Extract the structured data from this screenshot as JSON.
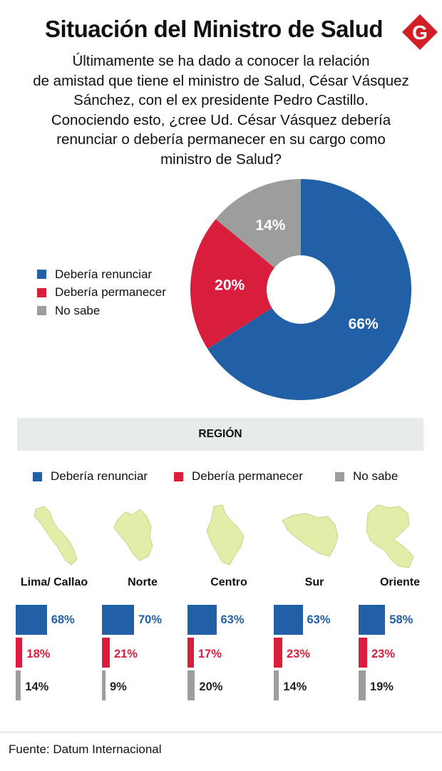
{
  "title": "Situación del Ministro de Salud",
  "logo_letter": "G",
  "question": "Últimamente se ha dado a conocer la relación\nde amistad que tiene el ministro de Salud, César Vásquez\nSánchez, con el ex presidente Pedro Castillo.\nConociendo esto, ¿cree Ud. César Vásquez debería\nrenunciar o debería permanecer en su cargo como\nministro de Salud?",
  "colors": {
    "renunciar": "#2160a6",
    "permanecer": "#d81e3c",
    "no_sabe": "#9d9d9d",
    "map_fill": "#e3eda8"
  },
  "legend": [
    "Debería renunciar",
    "Debería permanecer",
    "No sabe"
  ],
  "region_header": "REGIÓN",
  "source": "Fuente: Datum Internacional",
  "chart_data": [
    {
      "type": "pie",
      "donut": true,
      "categories": [
        "Debería renunciar",
        "Debería permanecer",
        "No sabe"
      ],
      "values": [
        66,
        20,
        14
      ],
      "labels": [
        "66%",
        "20%",
        "14%"
      ]
    },
    {
      "type": "bar",
      "orientation": "horizontal",
      "categories": [
        "Lima/ Callao",
        "Norte",
        "Centro",
        "Sur",
        "Oriente"
      ],
      "series": [
        {
          "name": "Debería renunciar",
          "values": [
            68,
            70,
            63,
            63,
            58
          ],
          "labels": [
            "68%",
            "70%",
            "63%",
            "63%",
            "58%"
          ]
        },
        {
          "name": "Debería permanecer",
          "values": [
            18,
            21,
            17,
            23,
            23
          ],
          "labels": [
            "18%",
            "21%",
            "17%",
            "23%",
            "23%"
          ]
        },
        {
          "name": "No sabe",
          "values": [
            14,
            9,
            20,
            14,
            19
          ],
          "labels": [
            "14%",
            "9%",
            "20%",
            "14%",
            "19%"
          ]
        }
      ]
    }
  ]
}
